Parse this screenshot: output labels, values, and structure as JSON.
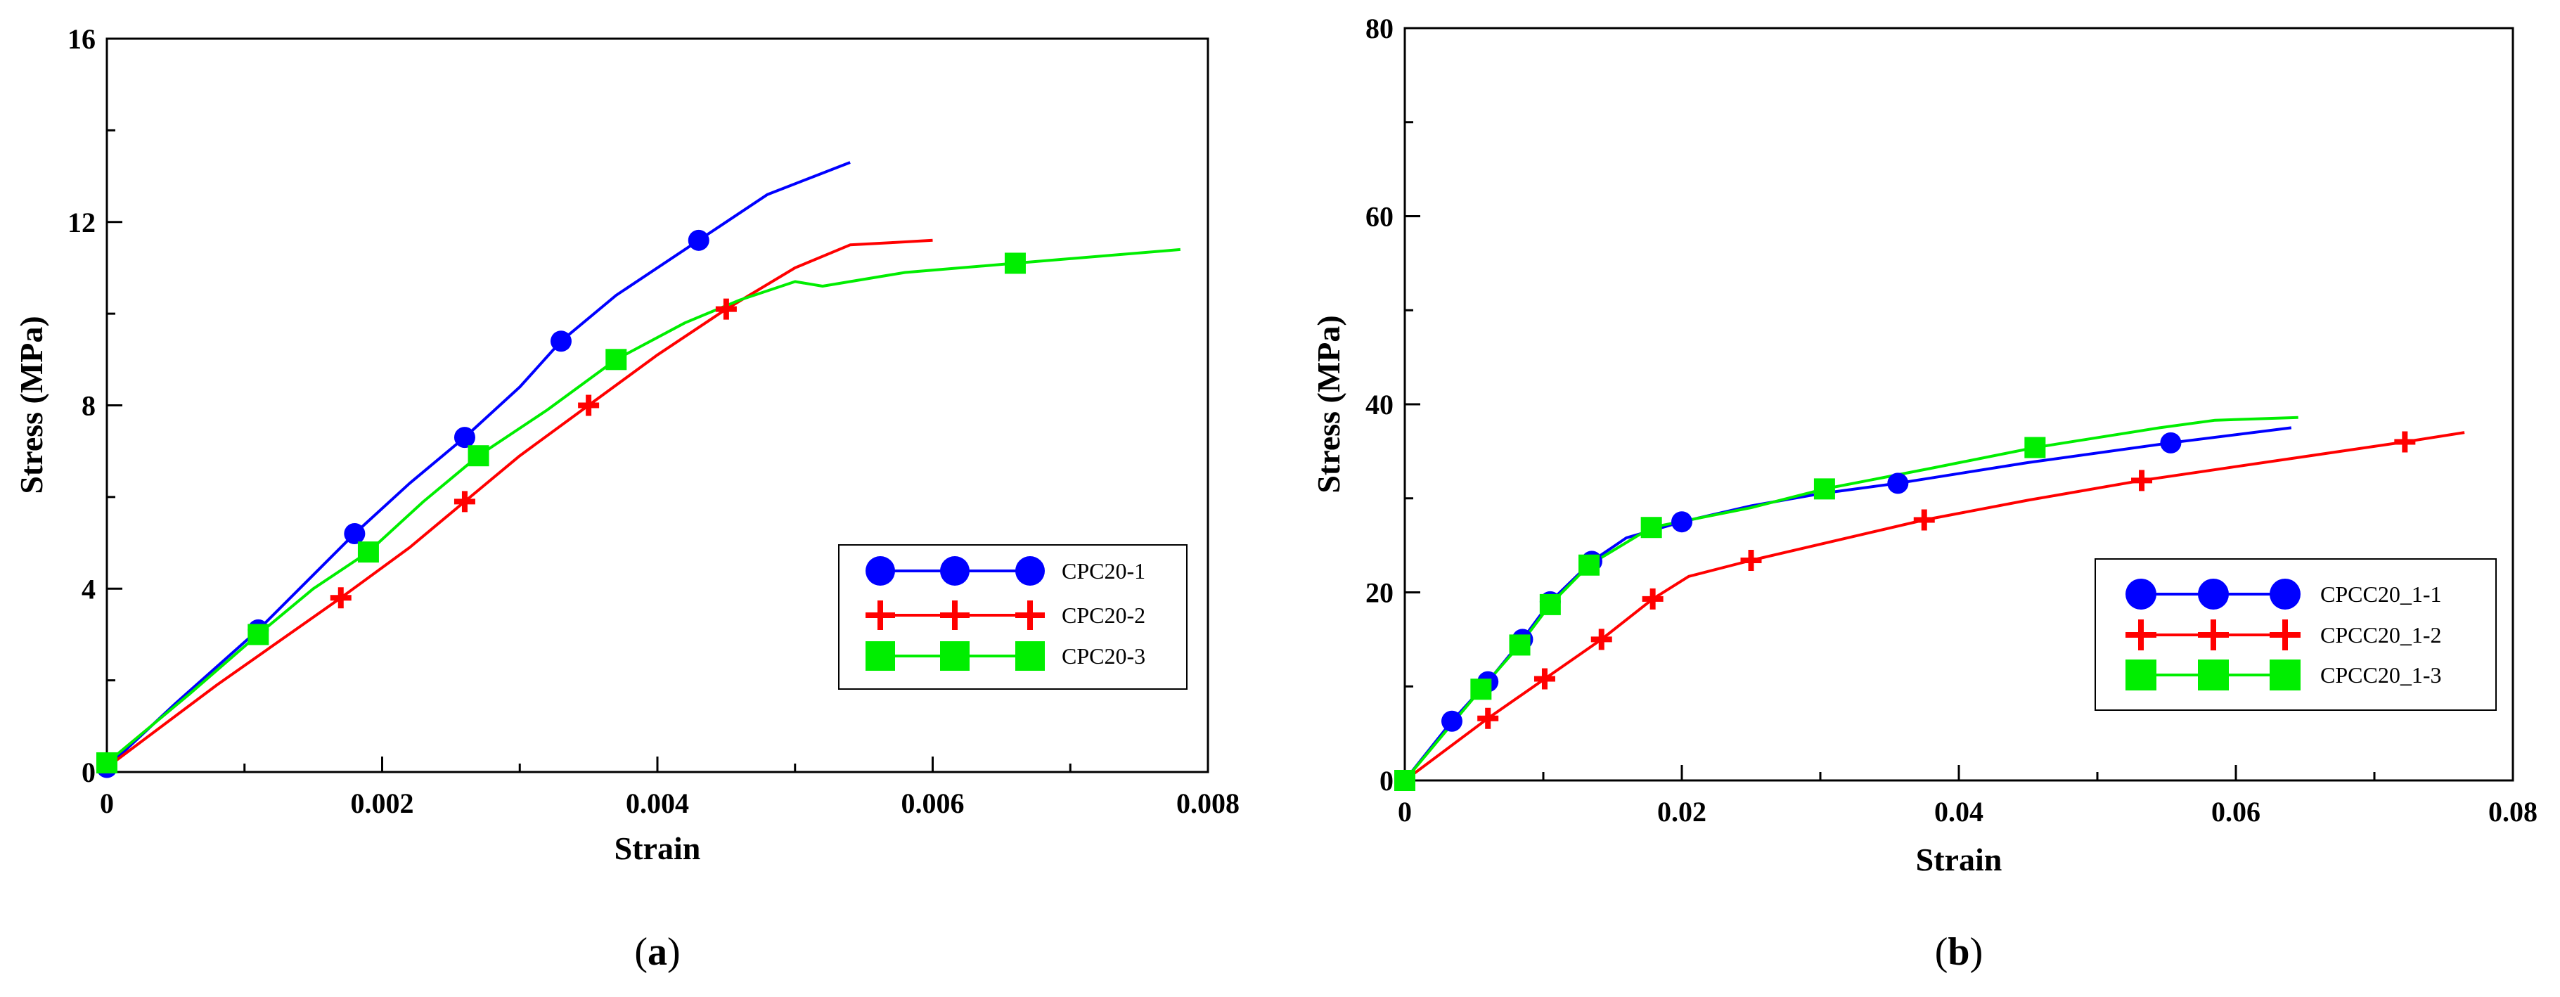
{
  "chart_data": [
    {
      "type": "line",
      "panel_label": "a",
      "xlabel": "Strain",
      "ylabel": "Stress (MPa)",
      "xlim": [
        0,
        0.008
      ],
      "ylim": [
        0,
        16
      ],
      "x_ticks": [
        0,
        0.002,
        0.004,
        0.006,
        0.008
      ],
      "x_tick_labels": [
        "0",
        "0.002",
        "0.004",
        "0.006",
        "0.008"
      ],
      "y_ticks": [
        0,
        4,
        8,
        12,
        16
      ],
      "y_tick_labels": [
        "0",
        "4",
        "8",
        "12",
        "16"
      ],
      "legend_placement": "center-right",
      "series": [
        {
          "name": "CPC20-1",
          "color": "#0000ff",
          "marker": "circle",
          "curve": [
            [
              0,
              0.1
            ],
            [
              0.0005,
              1.5
            ],
            [
              0.0011,
              3.1
            ],
            [
              0.0015,
              4.3
            ],
            [
              0.0018,
              5.2
            ],
            [
              0.0022,
              6.3
            ],
            [
              0.0026,
              7.3
            ],
            [
              0.003,
              8.4
            ],
            [
              0.0033,
              9.4
            ],
            [
              0.0037,
              10.4
            ],
            [
              0.0043,
              11.6
            ],
            [
              0.0048,
              12.6
            ],
            [
              0.0054,
              13.3
            ]
          ],
          "markers": [
            [
              0,
              0.1
            ],
            [
              0.0011,
              3.1
            ],
            [
              0.0018,
              5.2
            ],
            [
              0.0026,
              7.3
            ],
            [
              0.0033,
              9.4
            ],
            [
              0.0043,
              11.6
            ]
          ]
        },
        {
          "name": "CPC20-2",
          "color": "#ff0000",
          "marker": "plus",
          "curve": [
            [
              0,
              0.1
            ],
            [
              0.0008,
              1.9
            ],
            [
              0.0017,
              3.8
            ],
            [
              0.0022,
              4.9
            ],
            [
              0.0026,
              5.9
            ],
            [
              0.003,
              6.9
            ],
            [
              0.0035,
              8
            ],
            [
              0.004,
              9.1
            ],
            [
              0.0045,
              10.1
            ],
            [
              0.005,
              11
            ],
            [
              0.0054,
              11.5
            ],
            [
              0.0057,
              11.55
            ],
            [
              0.006,
              11.6
            ]
          ],
          "markers": [
            [
              0.0017,
              3.8
            ],
            [
              0.0026,
              5.9
            ],
            [
              0.0035,
              8
            ],
            [
              0.0045,
              10.1
            ]
          ]
        },
        {
          "name": "CPC20-3",
          "color": "#00ee00",
          "marker": "square",
          "curve": [
            [
              0,
              0.2
            ],
            [
              0.0006,
              1.7
            ],
            [
              0.0011,
              3
            ],
            [
              0.0015,
              4
            ],
            [
              0.0019,
              4.8
            ],
            [
              0.0023,
              5.9
            ],
            [
              0.0027,
              6.9
            ],
            [
              0.0032,
              7.9
            ],
            [
              0.0037,
              9
            ],
            [
              0.0042,
              9.8
            ],
            [
              0.0046,
              10.3
            ],
            [
              0.005,
              10.7
            ],
            [
              0.0052,
              10.6
            ],
            [
              0.0058,
              10.9
            ],
            [
              0.0066,
              11.1
            ],
            [
              0.0078,
              11.4
            ]
          ],
          "markers": [
            [
              0,
              0.2
            ],
            [
              0.0011,
              3
            ],
            [
              0.0019,
              4.8
            ],
            [
              0.0027,
              6.9
            ],
            [
              0.0037,
              9
            ],
            [
              0.0066,
              11.1
            ]
          ]
        }
      ]
    },
    {
      "type": "line",
      "panel_label": "b",
      "xlabel": "Strain",
      "ylabel": "Stress (MPa)",
      "xlim": [
        0,
        0.08
      ],
      "ylim": [
        0,
        80
      ],
      "x_ticks": [
        0,
        0.02,
        0.04,
        0.06,
        0.08
      ],
      "x_tick_labels": [
        "0",
        "0.02",
        "0.04",
        "0.06",
        "0.08"
      ],
      "y_ticks": [
        0,
        20,
        40,
        60,
        80
      ],
      "y_tick_labels": [
        "0",
        "20",
        "40",
        "60",
        "80"
      ],
      "legend_placement": "bottom-right",
      "series": [
        {
          "name": "CPCC20_1-1",
          "color": "#0000ff",
          "marker": "circle",
          "curve": [
            [
              0,
              0
            ],
            [
              0.0034,
              6.3
            ],
            [
              0.006,
              10.5
            ],
            [
              0.0085,
              15
            ],
            [
              0.0105,
              19
            ],
            [
              0.0135,
              23.3
            ],
            [
              0.016,
              25.8
            ],
            [
              0.02,
              27.5
            ],
            [
              0.025,
              29.2
            ],
            [
              0.03,
              30.5
            ],
            [
              0.0356,
              31.6
            ],
            [
              0.045,
              33.8
            ],
            [
              0.0553,
              35.9
            ],
            [
              0.064,
              37.5
            ]
          ],
          "markers": [
            [
              0,
              0
            ],
            [
              0.0034,
              6.3
            ],
            [
              0.006,
              10.5
            ],
            [
              0.0085,
              15
            ],
            [
              0.0105,
              19
            ],
            [
              0.0135,
              23.3
            ],
            [
              0.02,
              27.5
            ],
            [
              0.0356,
              31.6
            ],
            [
              0.0553,
              35.9
            ]
          ]
        },
        {
          "name": "CPCC20_1-2",
          "color": "#ff0000",
          "marker": "plus",
          "curve": [
            [
              0,
              0
            ],
            [
              0.006,
              6.6
            ],
            [
              0.0101,
              10.8
            ],
            [
              0.0142,
              15
            ],
            [
              0.0179,
              19.3
            ],
            [
              0.0205,
              21.7
            ],
            [
              0.025,
              23.4
            ],
            [
              0.0375,
              27.7
            ],
            [
              0.045,
              29.8
            ],
            [
              0.0532,
              31.9
            ],
            [
              0.0722,
              36
            ],
            [
              0.0765,
              37
            ]
          ],
          "markers": [
            [
              0,
              0
            ],
            [
              0.006,
              6.6
            ],
            [
              0.0101,
              10.8
            ],
            [
              0.0142,
              15
            ],
            [
              0.0179,
              19.3
            ],
            [
              0.025,
              23.4
            ],
            [
              0.0375,
              27.7
            ],
            [
              0.0532,
              31.9
            ],
            [
              0.0722,
              36
            ]
          ]
        },
        {
          "name": "CPCC20_1-3",
          "color": "#00ee00",
          "marker": "square",
          "curve": [
            [
              0,
              0
            ],
            [
              0.0055,
              9.7
            ],
            [
              0.0083,
              14.4
            ],
            [
              0.0105,
              18.7
            ],
            [
              0.0133,
              22.9
            ],
            [
              0.0178,
              26.9
            ],
            [
              0.025,
              29
            ],
            [
              0.0303,
              31
            ],
            [
              0.038,
              33.2
            ],
            [
              0.0455,
              35.4
            ],
            [
              0.0545,
              37.5
            ],
            [
              0.0585,
              38.3
            ],
            [
              0.0645,
              38.6
            ]
          ],
          "markers": [
            [
              0,
              0
            ],
            [
              0.0055,
              9.7
            ],
            [
              0.0083,
              14.4
            ],
            [
              0.0105,
              18.7
            ],
            [
              0.0133,
              22.9
            ],
            [
              0.0178,
              26.9
            ],
            [
              0.0303,
              31
            ],
            [
              0.0455,
              35.4
            ]
          ]
        }
      ]
    }
  ]
}
